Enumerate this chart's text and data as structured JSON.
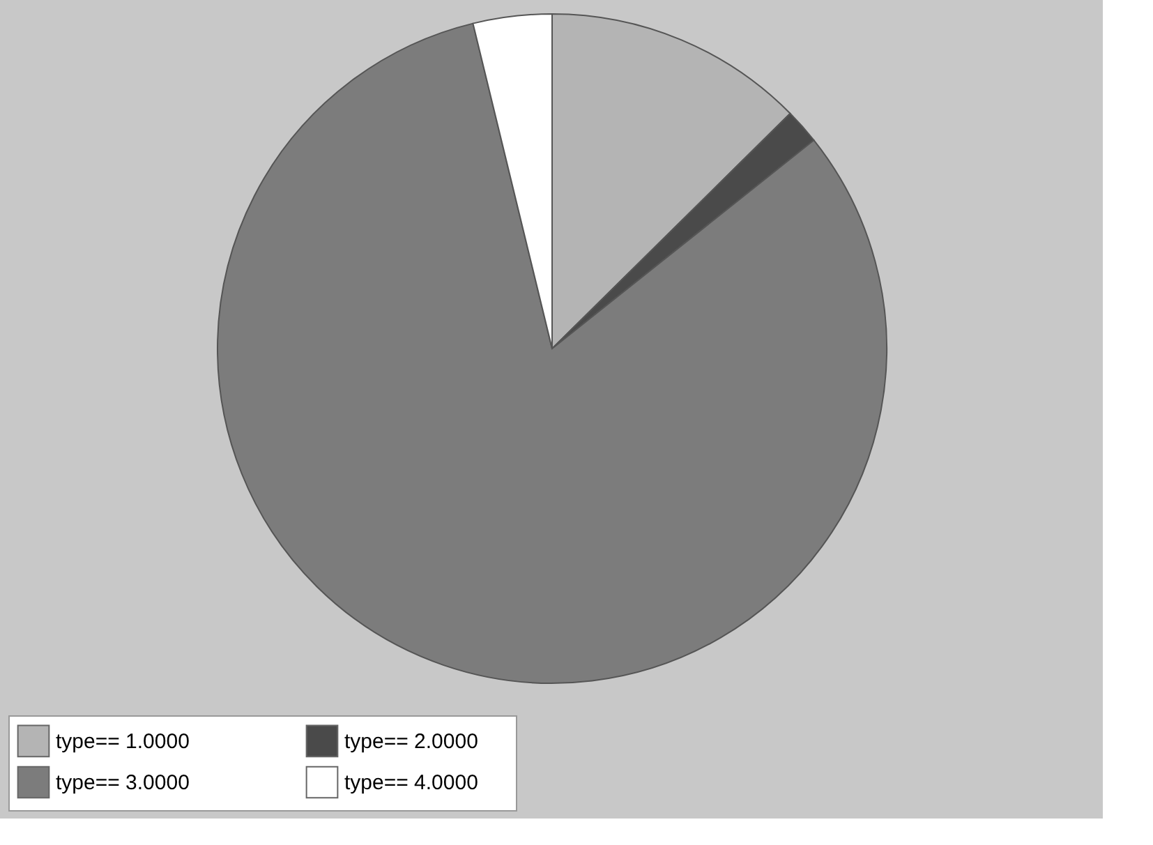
{
  "chart_data": {
    "type": "pie",
    "categories": [
      "type==      1.0000",
      "type==      2.0000",
      "type==      3.0000",
      "type==      4.0000"
    ],
    "values": [
      12.6,
      1.7,
      81.9,
      3.8
    ],
    "colors": [
      "#b4b4b4",
      "#4a4a4a",
      "#7c7c7c",
      "#ffffff"
    ],
    "legend": "bottom"
  }
}
